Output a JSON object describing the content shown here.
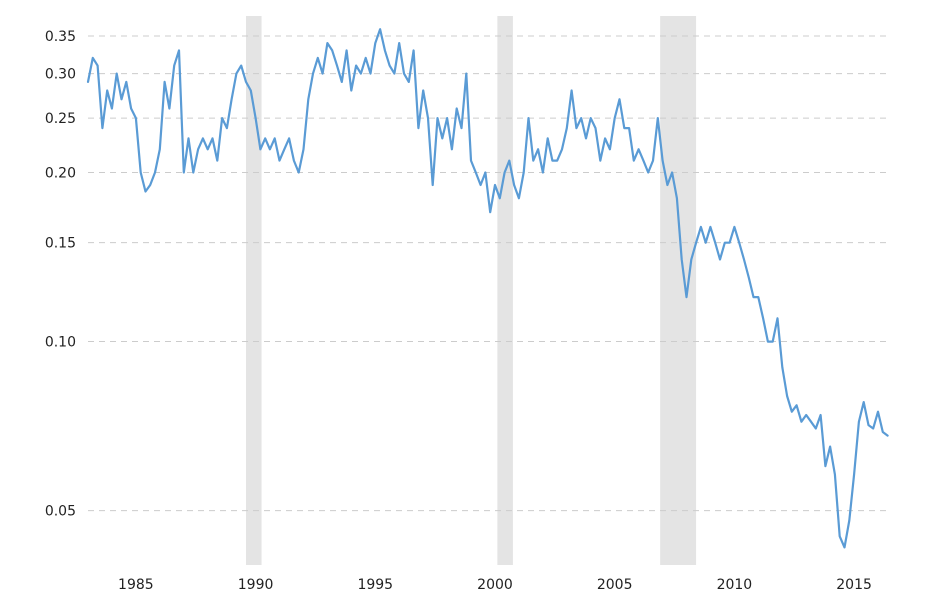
{
  "chart_data": {
    "type": "line",
    "title": "",
    "xlabel": "",
    "ylabel": "",
    "y_scale": "log",
    "xlim": [
      1983.0,
      2016.5
    ],
    "ylim": [
      0.04,
      0.38
    ],
    "grid": true,
    "legend": "none",
    "y_ticks": [
      "0.05",
      "0.10",
      "0.15",
      "0.20",
      "0.25",
      "0.30",
      "0.35"
    ],
    "x_ticks": [
      "1985",
      "1990",
      "1995",
      "2000",
      "2005",
      "2010",
      "2015"
    ],
    "recessions": [
      [
        1989.6,
        1990.25
      ],
      [
        2000.1,
        2000.75
      ],
      [
        2006.9,
        2008.4
      ]
    ],
    "colors": {
      "line": "#5a9bd5",
      "recession": "#e4e4e4",
      "grid": "#cccccc"
    },
    "series": [
      {
        "x": [
          1983.0,
          1983.2,
          1983.4,
          1983.6,
          1983.8,
          1984.0,
          1984.2,
          1984.4,
          1984.6,
          1984.8,
          1985.0,
          1985.2,
          1985.4,
          1985.6,
          1985.8,
          1986.0,
          1986.2,
          1986.4,
          1986.6,
          1986.8,
          1987.0,
          1987.2,
          1987.4,
          1987.6,
          1987.8,
          1988.0,
          1988.2,
          1988.4,
          1988.6,
          1988.8,
          1989.0,
          1989.2,
          1989.4,
          1989.6,
          1989.8,
          1990.0,
          1990.2,
          1990.4,
          1990.6,
          1990.8,
          1991.0,
          1991.2,
          1991.4,
          1991.6,
          1991.8,
          1992.0,
          1992.2,
          1992.4,
          1992.6,
          1992.8,
          1993.0,
          1993.2,
          1993.4,
          1993.6,
          1993.8,
          1994.0,
          1994.2,
          1994.4,
          1994.6,
          1994.8,
          1995.0,
          1995.2,
          1995.4,
          1995.6,
          1995.8,
          1996.0,
          1996.2,
          1996.4,
          1996.6,
          1996.8,
          1997.0,
          1997.2,
          1997.4,
          1997.6,
          1997.8,
          1998.0,
          1998.2,
          1998.4,
          1998.6,
          1998.8,
          1999.0,
          1999.2,
          1999.4,
          1999.6,
          1999.8,
          2000.0,
          2000.2,
          2000.4,
          2000.6,
          2000.8,
          2001.0,
          2001.2,
          2001.4,
          2001.6,
          2001.8,
          2002.0,
          2002.2,
          2002.4,
          2002.6,
          2002.8,
          2003.0,
          2003.2,
          2003.4,
          2003.6,
          2003.8,
          2004.0,
          2004.2,
          2004.4,
          2004.6,
          2004.8,
          2005.0,
          2005.2,
          2005.4,
          2005.6,
          2005.8,
          2006.0,
          2006.2,
          2006.4,
          2006.6,
          2006.8,
          2007.0,
          2007.2,
          2007.4,
          2007.6,
          2007.8,
          2008.0,
          2008.2,
          2008.4,
          2008.6,
          2008.8,
          2009.0,
          2009.2,
          2009.4,
          2009.6,
          2009.8,
          2010.0,
          2010.2,
          2010.4,
          2010.6,
          2010.8,
          2011.0,
          2011.2,
          2011.4,
          2011.6,
          2011.8,
          2012.0,
          2012.2,
          2012.4,
          2012.6,
          2012.8,
          2013.0,
          2013.2,
          2013.4,
          2013.6,
          2013.8,
          2014.0,
          2014.2,
          2014.4,
          2014.6,
          2014.8,
          2015.0,
          2015.2,
          2015.4,
          2015.6,
          2015.8,
          2016.0,
          2016.2,
          2016.4
        ],
        "values": [
          0.29,
          0.32,
          0.31,
          0.24,
          0.28,
          0.26,
          0.3,
          0.27,
          0.29,
          0.26,
          0.25,
          0.2,
          0.185,
          0.19,
          0.2,
          0.22,
          0.29,
          0.26,
          0.31,
          0.33,
          0.2,
          0.23,
          0.2,
          0.22,
          0.23,
          0.22,
          0.23,
          0.21,
          0.25,
          0.24,
          0.27,
          0.3,
          0.31,
          0.29,
          0.28,
          0.25,
          0.22,
          0.23,
          0.22,
          0.23,
          0.21,
          0.22,
          0.23,
          0.21,
          0.2,
          0.22,
          0.27,
          0.3,
          0.32,
          0.3,
          0.34,
          0.33,
          0.31,
          0.29,
          0.33,
          0.28,
          0.31,
          0.3,
          0.32,
          0.3,
          0.34,
          0.36,
          0.33,
          0.31,
          0.3,
          0.34,
          0.3,
          0.29,
          0.33,
          0.24,
          0.28,
          0.25,
          0.19,
          0.25,
          0.23,
          0.25,
          0.22,
          0.26,
          0.24,
          0.3,
          0.21,
          0.2,
          0.19,
          0.2,
          0.17,
          0.19,
          0.18,
          0.2,
          0.21,
          0.19,
          0.18,
          0.2,
          0.25,
          0.21,
          0.22,
          0.2,
          0.23,
          0.21,
          0.21,
          0.22,
          0.24,
          0.28,
          0.24,
          0.25,
          0.23,
          0.25,
          0.24,
          0.21,
          0.23,
          0.22,
          0.25,
          0.27,
          0.24,
          0.24,
          0.21,
          0.22,
          0.21,
          0.2,
          0.21,
          0.25,
          0.21,
          0.19,
          0.2,
          0.18,
          0.14,
          0.12,
          0.14,
          0.15,
          0.16,
          0.15,
          0.16,
          0.15,
          0.14,
          0.15,
          0.15,
          0.16,
          0.15,
          0.14,
          0.13,
          0.12,
          0.12,
          0.11,
          0.1,
          0.1,
          0.11,
          0.09,
          0.08,
          0.075,
          0.077,
          0.072,
          0.074,
          0.072,
          0.07,
          0.074,
          0.06,
          0.065,
          0.058,
          0.045,
          0.043,
          0.048,
          0.058,
          0.072,
          0.078,
          0.071,
          0.07,
          0.075,
          0.069,
          0.068
        ]
      }
    ]
  }
}
